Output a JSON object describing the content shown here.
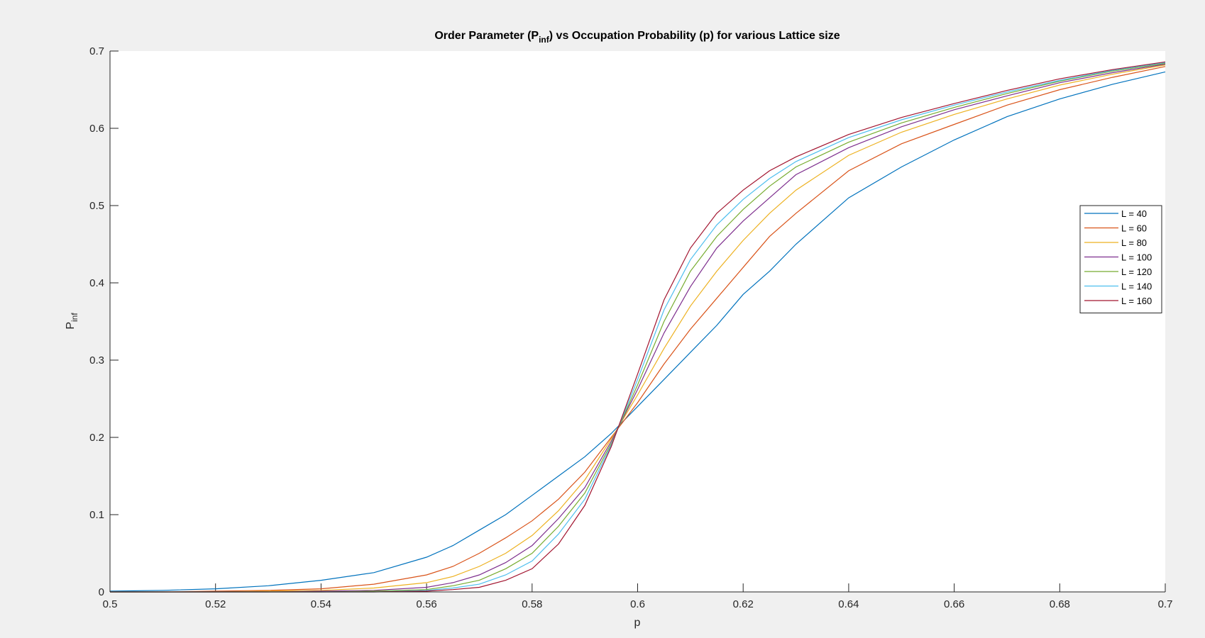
{
  "chart_data": {
    "type": "line",
    "title_main": "Order Parameter (P",
    "title_sub": "inf",
    "title_rest": ") vs Occupation Probability (p) for various Lattice size",
    "xlabel": "p",
    "ylabel_main": "P",
    "ylabel_sub": "inf",
    "xlim": [
      0.5,
      0.7
    ],
    "ylim": [
      0,
      0.7
    ],
    "xticks": [
      "0.5",
      "0.52",
      "0.54",
      "0.56",
      "0.58",
      "0.6",
      "0.62",
      "0.64",
      "0.66",
      "0.68",
      "0.7"
    ],
    "yticks": [
      "0",
      "0.1",
      "0.2",
      "0.3",
      "0.4",
      "0.5",
      "0.6",
      "0.7"
    ],
    "grid": false,
    "legend_position": "east",
    "x": [
      0.5,
      0.51,
      0.52,
      0.53,
      0.54,
      0.55,
      0.56,
      0.565,
      0.57,
      0.575,
      0.58,
      0.585,
      0.59,
      0.595,
      0.6,
      0.605,
      0.61,
      0.615,
      0.62,
      0.625,
      0.63,
      0.64,
      0.65,
      0.66,
      0.67,
      0.68,
      0.69,
      0.7
    ],
    "series": [
      {
        "name": "L = 40",
        "color": "#0072BD",
        "values": [
          0.001,
          0.002,
          0.004,
          0.008,
          0.015,
          0.025,
          0.045,
          0.06,
          0.08,
          0.1,
          0.125,
          0.15,
          0.175,
          0.205,
          0.24,
          0.275,
          0.31,
          0.345,
          0.385,
          0.415,
          0.45,
          0.51,
          0.55,
          0.585,
          0.615,
          0.638,
          0.657,
          0.673
        ]
      },
      {
        "name": "L = 60",
        "color": "#D95319",
        "values": [
          0.0,
          0.0,
          0.001,
          0.002,
          0.004,
          0.01,
          0.022,
          0.033,
          0.05,
          0.07,
          0.092,
          0.12,
          0.155,
          0.2,
          0.245,
          0.295,
          0.34,
          0.38,
          0.42,
          0.46,
          0.49,
          0.545,
          0.58,
          0.605,
          0.63,
          0.65,
          0.666,
          0.68
        ]
      },
      {
        "name": "L = 80",
        "color": "#EDB120",
        "values": [
          0.0,
          0.0,
          0.0,
          0.001,
          0.002,
          0.005,
          0.012,
          0.02,
          0.033,
          0.05,
          0.073,
          0.105,
          0.145,
          0.198,
          0.255,
          0.315,
          0.37,
          0.415,
          0.455,
          0.49,
          0.52,
          0.565,
          0.595,
          0.618,
          0.638,
          0.656,
          0.67,
          0.682
        ]
      },
      {
        "name": "L = 100",
        "color": "#7E2F8E",
        "values": [
          0.0,
          0.0,
          0.0,
          0.0,
          0.001,
          0.002,
          0.006,
          0.012,
          0.022,
          0.038,
          0.06,
          0.095,
          0.135,
          0.195,
          0.262,
          0.335,
          0.395,
          0.445,
          0.48,
          0.51,
          0.54,
          0.575,
          0.602,
          0.624,
          0.642,
          0.659,
          0.672,
          0.683
        ]
      },
      {
        "name": "L = 120",
        "color": "#77AC30",
        "values": [
          0.0,
          0.0,
          0.0,
          0.0,
          0.0,
          0.001,
          0.003,
          0.008,
          0.015,
          0.03,
          0.05,
          0.085,
          0.128,
          0.192,
          0.268,
          0.35,
          0.415,
          0.46,
          0.495,
          0.525,
          0.55,
          0.582,
          0.607,
          0.627,
          0.645,
          0.661,
          0.674,
          0.684
        ]
      },
      {
        "name": "L = 140",
        "color": "#4DBEEE",
        "values": [
          0.0,
          0.0,
          0.0,
          0.0,
          0.0,
          0.0,
          0.002,
          0.005,
          0.01,
          0.022,
          0.04,
          0.075,
          0.12,
          0.19,
          0.275,
          0.365,
          0.43,
          0.475,
          0.508,
          0.535,
          0.557,
          0.588,
          0.611,
          0.63,
          0.647,
          0.662,
          0.675,
          0.685
        ]
      },
      {
        "name": "L = 160",
        "color": "#A2142F",
        "values": [
          0.0,
          0.0,
          0.0,
          0.0,
          0.0,
          0.0,
          0.001,
          0.003,
          0.006,
          0.015,
          0.03,
          0.062,
          0.112,
          0.188,
          0.282,
          0.378,
          0.445,
          0.49,
          0.52,
          0.545,
          0.563,
          0.592,
          0.614,
          0.632,
          0.649,
          0.664,
          0.676,
          0.686
        ]
      }
    ]
  }
}
